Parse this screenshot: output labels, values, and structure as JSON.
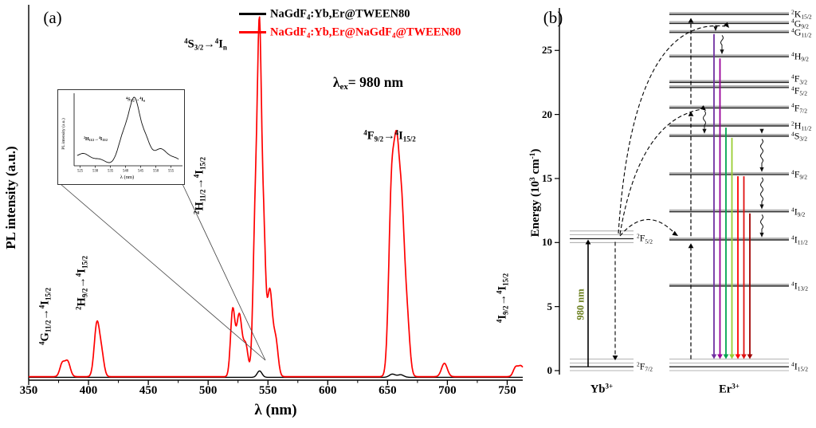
{
  "panel_a": {
    "label": "(a)",
    "legend": [
      {
        "label": "NaGdF_{4}:Yb,Er@TWEEN80",
        "color": "#000000"
      },
      {
        "label": "NaGdF_{4}:Yb,Er@NaGdF_{4}@TWEEN80",
        "color": "#ff0000"
      }
    ]
  },
  "chart_data": {
    "type": "line",
    "title": "",
    "xlabel": "λ (nm)",
    "ylabel": "PL intensity (a.u.)",
    "x_range": [
      350,
      763
    ],
    "x_ticks": [
      350,
      400,
      450,
      500,
      550,
      600,
      650,
      700,
      750
    ],
    "excitation_label": "λ_{ex}= 980 nm",
    "series": [
      {
        "name": "NaGdF_{4}:Yb,Er@TWEEN80",
        "color": "#000000",
        "baseline": 0.004,
        "peaks": [
          [
            543,
            0.02,
            2.0
          ],
          [
            654,
            0.01,
            2.5
          ],
          [
            661,
            0.008,
            2.5
          ]
        ]
      },
      {
        "name": "NaGdF_{4}:Yb,Er@NaGdF_{4}@TWEEN80",
        "color": "#ff0000",
        "baseline": 0.006,
        "peaks": [
          [
            378,
            0.04,
            2.0
          ],
          [
            382.5,
            0.048,
            2.2
          ],
          [
            407,
            0.165,
            2.2
          ],
          [
            411,
            0.065,
            2.0
          ],
          [
            520.5,
            0.205,
            1.8
          ],
          [
            526,
            0.195,
            2.3
          ],
          [
            531.5,
            0.095,
            2.0
          ],
          [
            539.5,
            0.5,
            1.9
          ],
          [
            543,
            1.0,
            1.7
          ],
          [
            546.5,
            0.4,
            1.6
          ],
          [
            551.5,
            0.27,
            2.2
          ],
          [
            556.5,
            0.11,
            2.0
          ],
          [
            653.5,
            0.6,
            2.4
          ],
          [
            657.5,
            0.46,
            2.0
          ],
          [
            661.5,
            0.53,
            2.6
          ],
          [
            666.5,
            0.15,
            2.2
          ],
          [
            697.5,
            0.042,
            2.4
          ],
          [
            757,
            0.028,
            2.0
          ],
          [
            761.5,
            0.032,
            2.2
          ],
          [
            766,
            0.016,
            1.8
          ]
        ]
      }
    ],
    "peak_assignments": [
      {
        "label": "^{4}G_{11/2}→^{4}I_{15/2}",
        "wavelength_nm": 380
      },
      {
        "label": "^{2}H_{9/2}→^{4}I_{15/2}",
        "wavelength_nm": 408
      },
      {
        "label": "^{2}H_{11/2}→^{4}I_{15/2}",
        "wavelength_nm": 522
      },
      {
        "label": "^{4}S_{3/2}→^{4}I_{n}",
        "wavelength_nm": 543
      },
      {
        "label": "^{4}F_{9/2}→^{4}I_{15/2}",
        "wavelength_nm": 657
      },
      {
        "label": "^{4}I_{9/2}→^{4}I_{15/2}",
        "wavelength_nm": 760
      }
    ],
    "inset": {
      "xlabel": "λ (nm)",
      "ylabel": "PL intensity (a.u.)",
      "x_range": [
        523,
        558
      ],
      "x_ticks": [
        525,
        530,
        535,
        540,
        545,
        550,
        555
      ],
      "labels": [
        {
          "text": "^{2}H_{11/2}→^{4}I_{15/2}"
        },
        {
          "text": "^{4}S_{3/2}→^{4}I_{n}"
        }
      ]
    }
  },
  "panel_b": {
    "label": "(b)",
    "ylabel": "Energy (10^{3} cm^{-1})",
    "y_ticks": [
      0,
      5,
      10,
      15,
      20,
      25
    ],
    "y_range": [
      0,
      28
    ],
    "ions": [
      {
        "name": "Yb^{3+}",
        "levels": [
          {
            "label": "^{2}F_{7/2}",
            "E": 0.3
          },
          {
            "label": "^{2}F_{5/2}",
            "E": 10.3
          }
        ]
      },
      {
        "name": "Er^{3+}",
        "levels": [
          {
            "label": "^{4}I_{15/2}",
            "E": 0.3
          },
          {
            "label": "^{4}I_{13/2}",
            "E": 6.6
          },
          {
            "label": "^{4}I_{11/2}",
            "E": 10.2
          },
          {
            "label": "^{4}I_{9/2}",
            "E": 12.4
          },
          {
            "label": "^{4}F_{9/2}",
            "E": 15.3
          },
          {
            "label": "^{4}S_{3/2}",
            "E": 18.3
          },
          {
            "label": "^{2}H_{11/2}",
            "E": 19.1
          },
          {
            "label": "^{4}F_{7/2}",
            "E": 20.5
          },
          {
            "label": "^{4}F_{5/2}",
            "E": 22.1
          },
          {
            "label": "^{4}F_{3/2}",
            "E": 22.5
          },
          {
            "label": "^{4}H_{9/2}",
            "E": 24.5
          },
          {
            "label": "^{4}G_{11/2}",
            "E": 26.4
          },
          {
            "label": "^{4}G_{9/2}",
            "E": 27.1
          },
          {
            "label": "^{2}K_{15/2}",
            "E": 27.8
          }
        ]
      }
    ],
    "excitation": {
      "label": "980 nm",
      "color": "#6b7f1e",
      "E_from": 0.3,
      "E_to": 10.3
    },
    "emissions": [
      {
        "color": "#7030a0",
        "E_from": 26.4,
        "E_to": 0.9
      },
      {
        "color": "#990099",
        "E_from": 24.5,
        "E_to": 0.9
      },
      {
        "color": "#00a550",
        "E_from": 19.1,
        "E_to": 0.9
      },
      {
        "color": "#9acd32",
        "E_from": 18.3,
        "E_to": 0.9
      },
      {
        "color": "#ff0000",
        "E_from": 15.3,
        "E_to": 0.9
      },
      {
        "color": "#e01010",
        "E_from": 15.3,
        "E_to": 0.9
      },
      {
        "color": "#a00000",
        "E_from": 12.4,
        "E_to": 0.9
      }
    ],
    "upconversion_steps": [
      {
        "E_from": 0.9,
        "E_to": 10.0
      },
      {
        "E_from": 10.5,
        "E_to": 20.3
      },
      {
        "E_from": 20.8,
        "E_to": 27.6
      }
    ],
    "relaxations": [
      {
        "E_from": 27.1,
        "E_to": 26.5
      },
      {
        "E_from": 26.3,
        "E_to": 24.7
      },
      {
        "E_from": 20.4,
        "E_to": 18.5
      },
      {
        "E_from": 19.0,
        "E_to": 18.5
      },
      {
        "E_from": 18.2,
        "E_to": 15.5
      },
      {
        "E_from": 15.2,
        "E_to": 12.6
      },
      {
        "E_from": 12.3,
        "E_to": 10.4
      }
    ]
  }
}
